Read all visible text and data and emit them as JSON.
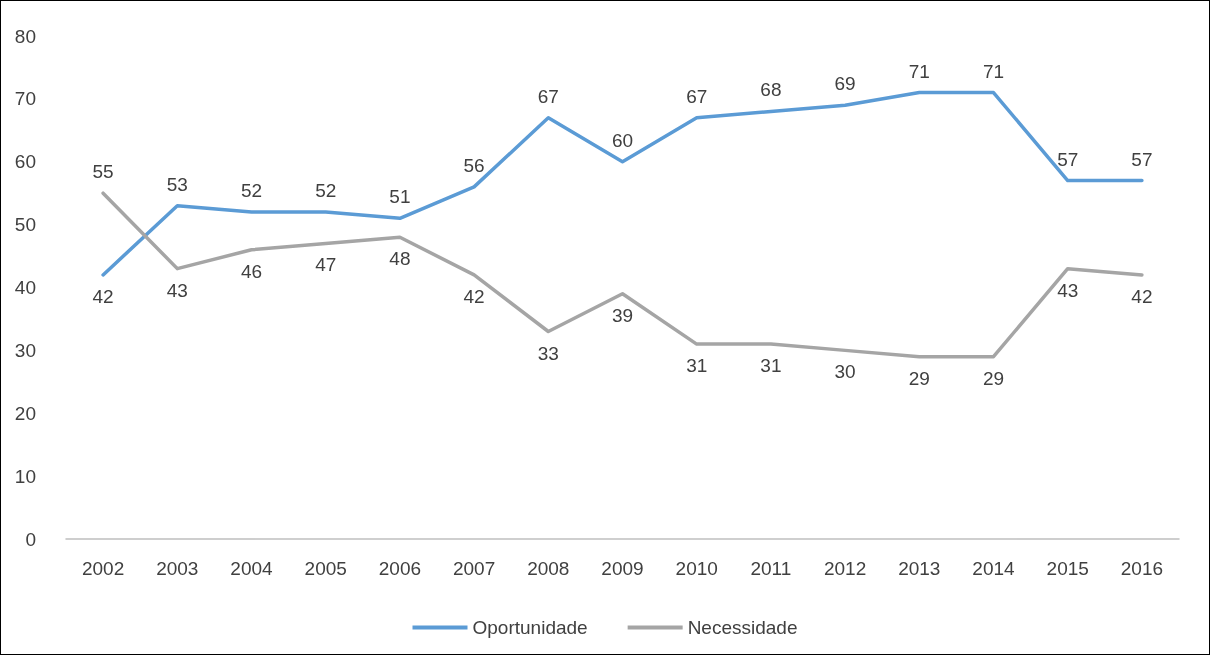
{
  "chart_data": {
    "type": "line",
    "categories": [
      "2002",
      "2003",
      "2004",
      "2005",
      "2006",
      "2007",
      "2008",
      "2009",
      "2010",
      "2011",
      "2012",
      "2013",
      "2014",
      "2015",
      "2016"
    ],
    "series": [
      {
        "name": "Oportunidade",
        "color": "#5b9bd5",
        "values": [
          42,
          53,
          52,
          52,
          51,
          56,
          67,
          60,
          67,
          68,
          69,
          71,
          71,
          57,
          57
        ]
      },
      {
        "name": "Necessidade",
        "color": "#a5a5a5",
        "values": [
          55,
          43,
          46,
          47,
          48,
          42,
          33,
          39,
          31,
          31,
          30,
          29,
          29,
          43,
          42
        ]
      }
    ],
    "ylim": [
      0,
      80
    ],
    "yticks": [
      0,
      10,
      20,
      30,
      40,
      50,
      60,
      70,
      80
    ],
    "grid": false,
    "legend": "bottom",
    "marker": "none",
    "line_style": "solid",
    "data_labels": true
  }
}
